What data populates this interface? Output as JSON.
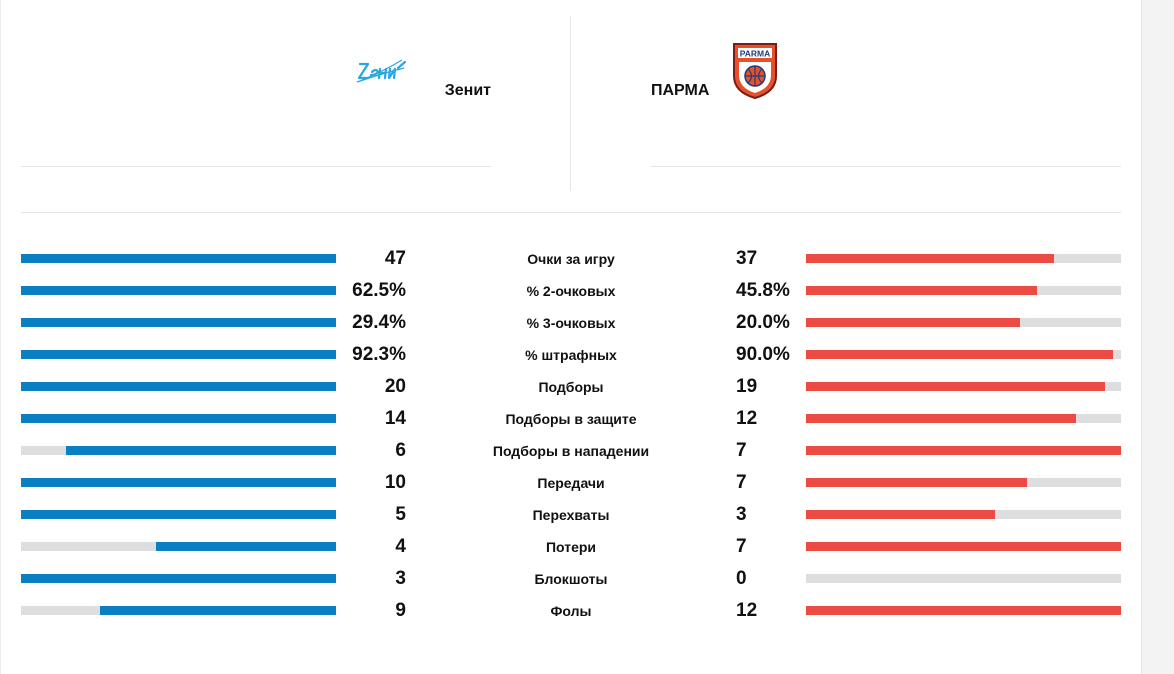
{
  "home_team": {
    "name": "Зенит",
    "logo_icon": "zenit-logo-icon",
    "logo_text": "Зенит",
    "color": "#0a7fc1"
  },
  "away_team": {
    "name": "ПАРМА",
    "logo_icon": "parma-logo-icon",
    "logo_text": "PARMA",
    "color": "#ea4b43"
  },
  "stats": [
    {
      "label": "Очки за игру",
      "home": "47",
      "away": "37",
      "home_fill": 1.0,
      "away_fill": 0.787
    },
    {
      "label": "% 2-очковых",
      "home": "62.5%",
      "away": "45.8%",
      "home_fill": 1.0,
      "away_fill": 0.733
    },
    {
      "label": "% 3-очковых",
      "home": "29.4%",
      "away": "20.0%",
      "home_fill": 1.0,
      "away_fill": 0.68
    },
    {
      "label": "% штрафных",
      "home": "92.3%",
      "away": "90.0%",
      "home_fill": 1.0,
      "away_fill": 0.975
    },
    {
      "label": "Подборы",
      "home": "20",
      "away": "19",
      "home_fill": 1.0,
      "away_fill": 0.95
    },
    {
      "label": "Подборы в защите",
      "home": "14",
      "away": "12",
      "home_fill": 1.0,
      "away_fill": 0.857
    },
    {
      "label": "Подборы в нападении",
      "home": "6",
      "away": "7",
      "home_fill": 0.857,
      "away_fill": 1.0
    },
    {
      "label": "Передачи",
      "home": "10",
      "away": "7",
      "home_fill": 1.0,
      "away_fill": 0.7
    },
    {
      "label": "Перехваты",
      "home": "5",
      "away": "3",
      "home_fill": 1.0,
      "away_fill": 0.6
    },
    {
      "label": "Потери",
      "home": "4",
      "away": "7",
      "home_fill": 0.571,
      "away_fill": 1.0
    },
    {
      "label": "Блокшоты",
      "home": "3",
      "away": "0",
      "home_fill": 1.0,
      "away_fill": 0.0
    },
    {
      "label": "Фолы",
      "home": "9",
      "away": "12",
      "home_fill": 0.75,
      "away_fill": 1.0
    }
  ]
}
